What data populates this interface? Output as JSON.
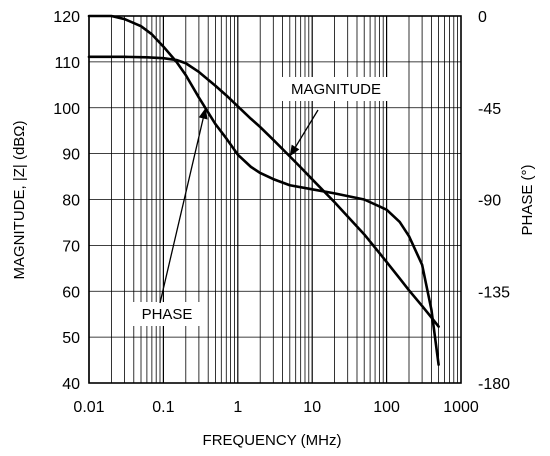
{
  "chart_data": {
    "type": "line",
    "title": "",
    "xlabel": "FREQUENCY (MHz)",
    "ylabel_left": "MAGNITUDE, |Z| (dBΩ)",
    "ylabel_right": "PHASE (°)",
    "x_scale": "log",
    "xlim": [
      0.01,
      1000
    ],
    "ylim_left": [
      40,
      120
    ],
    "ylim_right": [
      -180,
      0
    ],
    "grid": true,
    "x_ticks": [
      "0.01",
      "0.1",
      "1",
      "10",
      "100",
      "1000"
    ],
    "y_ticks_left": [
      "40",
      "50",
      "60",
      "70",
      "80",
      "90",
      "100",
      "110",
      "120"
    ],
    "y_ticks_right": [
      "-180",
      "-135",
      "-90",
      "-45",
      "0"
    ],
    "series": [
      {
        "axis": "left",
        "unit": "dBΩ",
        "x": [
          0.01,
          0.03,
          0.06,
          0.1,
          0.15,
          0.2,
          0.3,
          0.5,
          0.7,
          1,
          1.5,
          2,
          3,
          5,
          7,
          10,
          20,
          30,
          50,
          70,
          100,
          150,
          200,
          300,
          400,
          500
        ],
        "y": [
          111.1,
          111.1,
          111.0,
          110.8,
          110.4,
          109.7,
          107.8,
          104.8,
          102.7,
          100.3,
          97.6,
          95.8,
          93.0,
          89.4,
          87.0,
          84.4,
          79.4,
          76.3,
          72.4,
          69.5,
          66.4,
          62.8,
          60.2,
          56.8,
          54.3,
          52.3
        ]
      },
      {
        "axis": "right",
        "unit": "°",
        "x": [
          0.01,
          0.02,
          0.03,
          0.05,
          0.07,
          0.1,
          0.15,
          0.2,
          0.3,
          0.5,
          0.7,
          1,
          1.5,
          2,
          3,
          5,
          10,
          20,
          50,
          100,
          150,
          200,
          300,
          400,
          500
        ],
        "y": [
          0,
          0,
          -1.5,
          -5,
          -9,
          -15,
          -22.5,
          -29,
          -40,
          -53,
          -60,
          -68,
          -74,
          -77,
          -80,
          -83,
          -85,
          -87,
          -90,
          -95,
          -101,
          -108,
          -122,
          -144,
          -171
        ]
      }
    ],
    "annotations": [
      {
        "text": "MAGNITUDE",
        "series_index": 0,
        "points_to": {
          "x": 5,
          "y": 89.4
        }
      },
      {
        "text": "PHASE",
        "series_index": 1,
        "points_to": {
          "x": 0.37,
          "y": -45
        }
      }
    ]
  }
}
